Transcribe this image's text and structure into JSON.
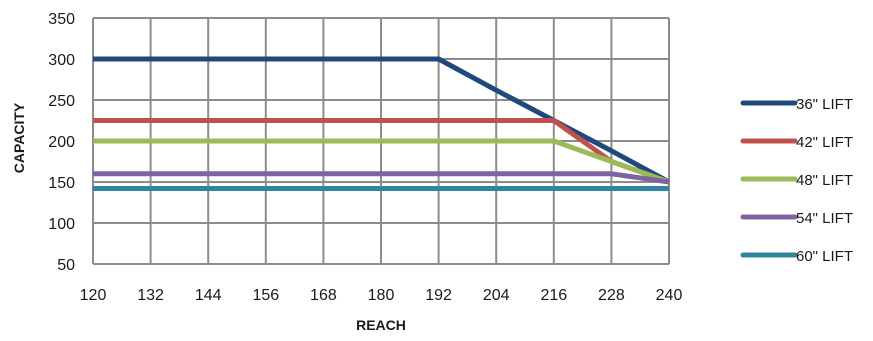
{
  "chart_data": {
    "type": "line",
    "title": "",
    "xlabel": "REACH",
    "ylabel": "CAPACITY",
    "x": [
      120,
      132,
      144,
      156,
      168,
      180,
      192,
      204,
      216,
      228,
      240
    ],
    "xlim": [
      120,
      240
    ],
    "ylim": [
      50,
      350
    ],
    "y_ticks": [
      50,
      100,
      150,
      200,
      250,
      300,
      350
    ],
    "grid": true,
    "legend_position": "right",
    "series": [
      {
        "name": "36\" LIFT",
        "color": "#1f497d",
        "values": [
          300,
          300,
          300,
          300,
          300,
          300,
          300,
          262,
          225,
          188,
          150
        ]
      },
      {
        "name": "42\" LIFT",
        "color": "#c0504d",
        "values": [
          225,
          225,
          225,
          225,
          225,
          225,
          225,
          225,
          225,
          175,
          150
        ]
      },
      {
        "name": "48\" LIFT",
        "color": "#9bbb59",
        "values": [
          200,
          200,
          200,
          200,
          200,
          200,
          200,
          200,
          200,
          175,
          150
        ]
      },
      {
        "name": "54\" LIFT",
        "color": "#8064a2",
        "values": [
          160,
          160,
          160,
          160,
          160,
          160,
          160,
          160,
          160,
          160,
          150
        ]
      },
      {
        "name": "60\" LIFT",
        "color": "#31859c",
        "values": [
          142,
          142,
          142,
          142,
          142,
          142,
          142,
          142,
          142,
          142,
          142
        ]
      }
    ]
  }
}
